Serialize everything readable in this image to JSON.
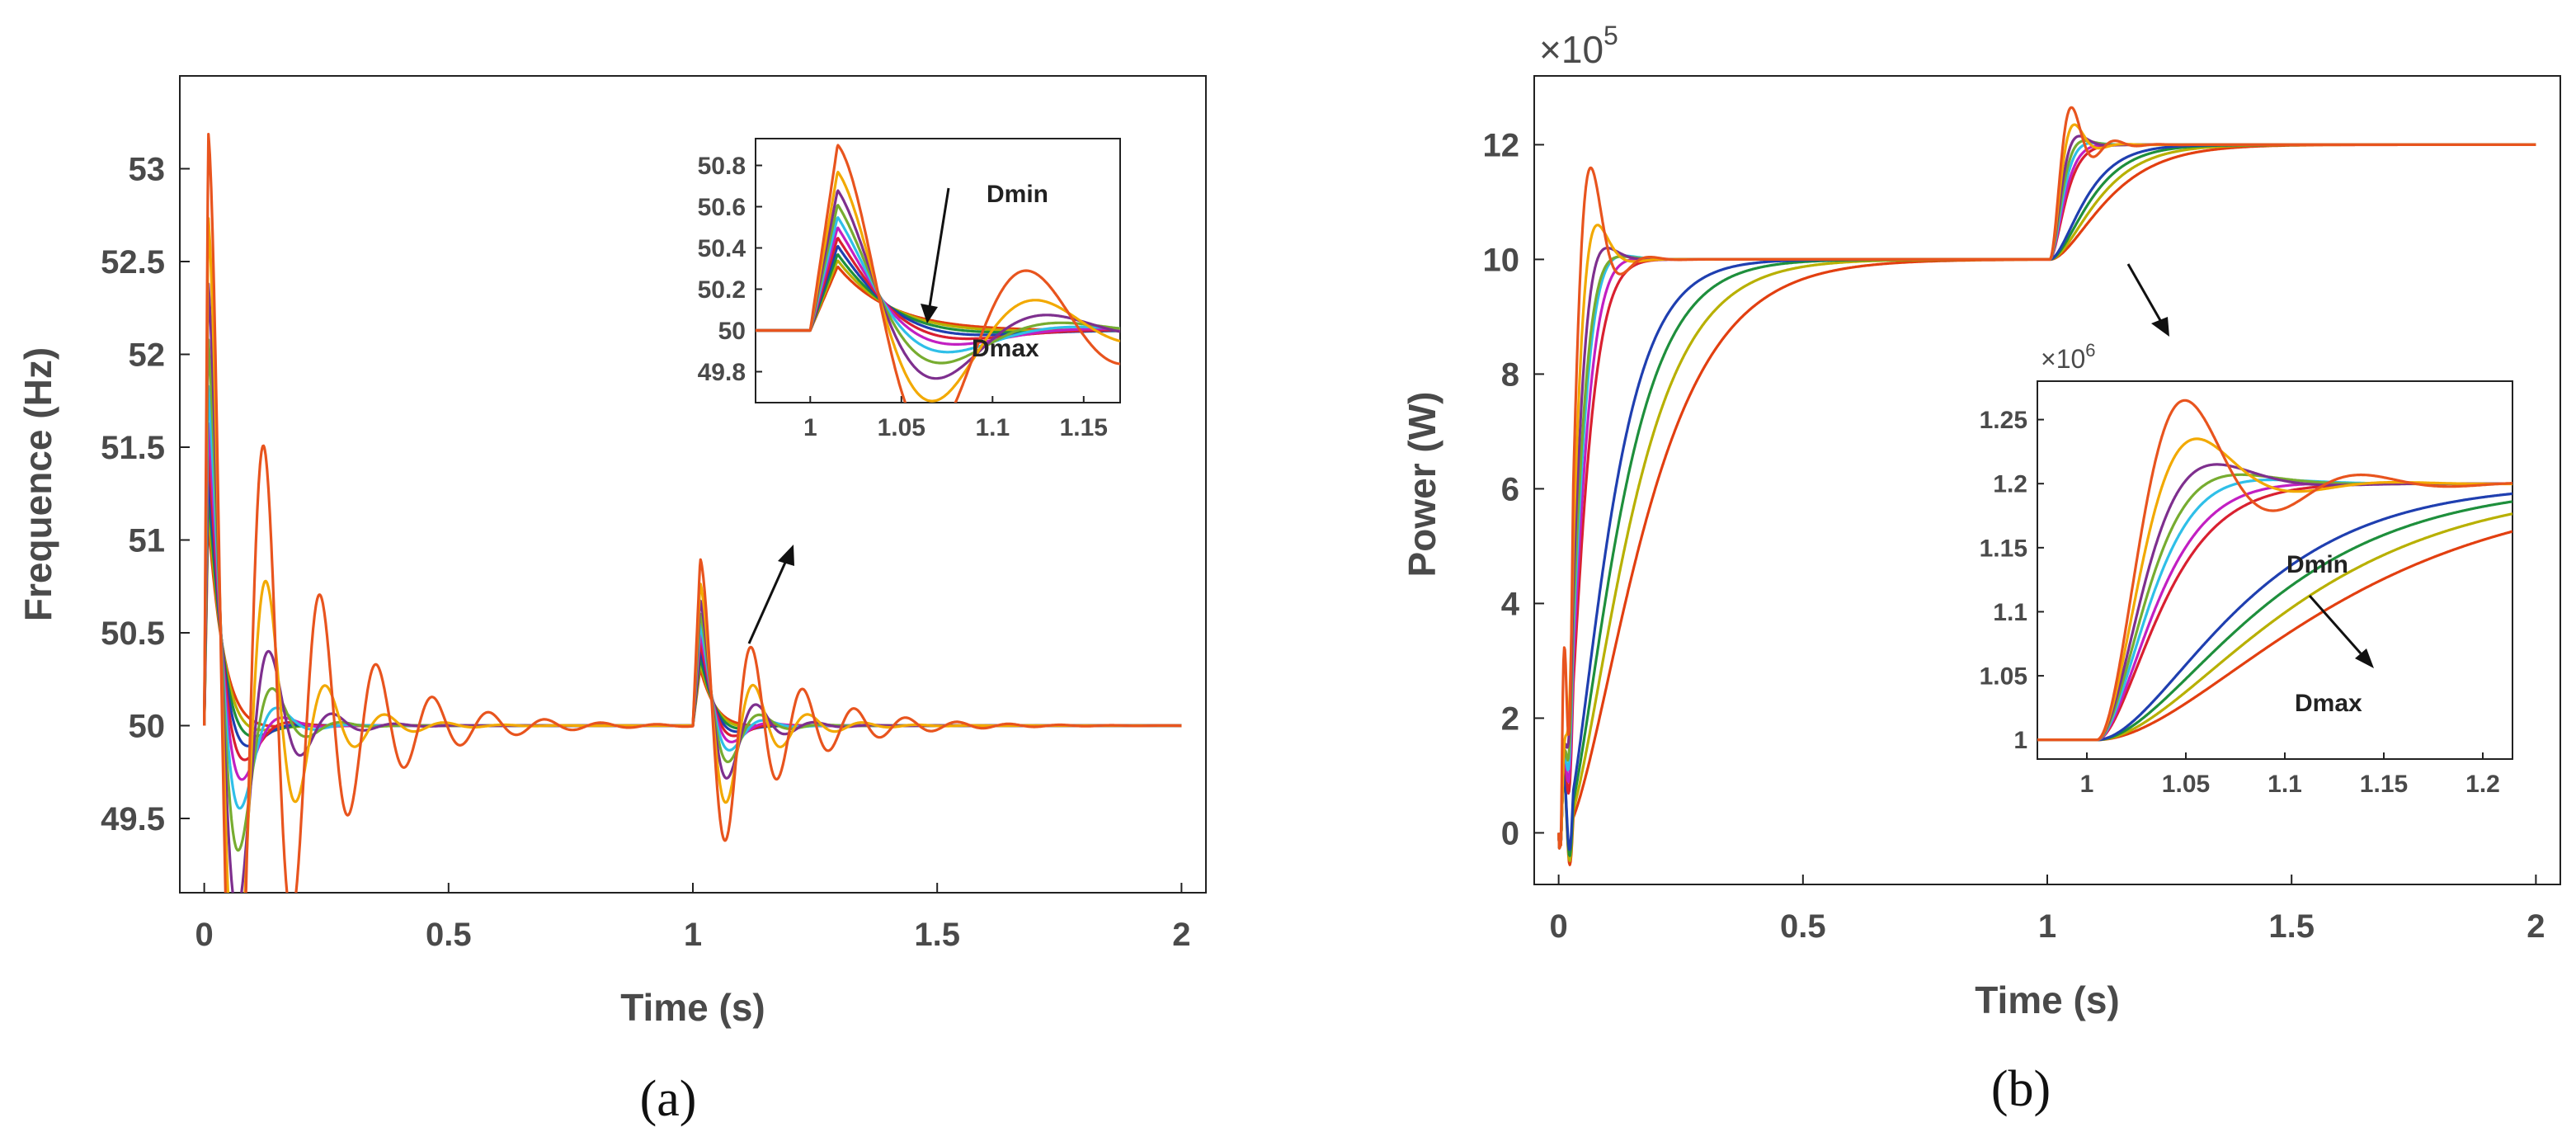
{
  "figure": {
    "panel_a_label": "(a)",
    "panel_b_label": "(b)"
  },
  "chart_data": [
    {
      "id": "a",
      "type": "line",
      "xlabel": "Time (s)",
      "ylabel": "Frequence (Hz)",
      "xlim": [
        -0.05,
        2.05
      ],
      "ylim": [
        49.1,
        53.5
      ],
      "xticks": [
        0,
        0.5,
        1,
        1.5,
        2
      ],
      "xtick_labels": [
        "0",
        "0.5",
        "1",
        "1.5",
        "2"
      ],
      "yticks": [
        49.5,
        50,
        50.5,
        51,
        51.5,
        52,
        52.5,
        53
      ],
      "ytick_labels": [
        "49.5",
        "50",
        "50.5",
        "51",
        "51.5",
        "52",
        "52.5",
        "53"
      ],
      "series_count": 11,
      "step_times": [
        0,
        1
      ],
      "first_peaks": [
        53.2,
        52.75,
        52.4,
        52.1,
        51.85,
        51.65,
        51.5,
        51.38,
        51.28,
        51.2,
        51.12
      ],
      "second_peaks": [
        50.9,
        50.77,
        50.68,
        50.61,
        50.55,
        50.5,
        50.45,
        50.41,
        50.37,
        50.34,
        50.31
      ],
      "inset": {
        "xlim": [
          0.97,
          1.17
        ],
        "ylim": [
          49.65,
          50.93
        ],
        "xticks": [
          1,
          1.05,
          1.1,
          1.15
        ],
        "xtick_labels": [
          "1",
          "1.05",
          "1.1",
          "1.15"
        ],
        "yticks": [
          49.8,
          50,
          50.2,
          50.4,
          50.6,
          50.8
        ],
        "ytick_labels": [
          "49.8",
          "50",
          "50.2",
          "50.4",
          "50.6",
          "50.8"
        ],
        "dmin_label": "Dmin",
        "dmax_label": "Dmax"
      }
    },
    {
      "id": "b",
      "type": "line",
      "xlabel": "Time (s)",
      "ylabel": "Power (W)",
      "exponent_label": "×10",
      "exponent_power": "5",
      "xlim": [
        -0.05,
        2.05
      ],
      "ylim": [
        -0.9,
        13.2
      ],
      "xticks": [
        0,
        0.5,
        1,
        1.5,
        2
      ],
      "xtick_labels": [
        "0",
        "0.5",
        "1",
        "1.5",
        "2"
      ],
      "yticks": [
        0,
        2,
        4,
        6,
        8,
        10,
        12
      ],
      "ytick_labels": [
        "0",
        "2",
        "4",
        "6",
        "8",
        "10",
        "12"
      ],
      "series_count": 11,
      "levels": [
        10,
        12
      ],
      "first_peaks": [
        11.6,
        10.6,
        10.2,
        10.05,
        10.0,
        10.0,
        10.0,
        10.0,
        10.0,
        10.0,
        10.0
      ],
      "second_peaks": [
        12.65,
        12.35,
        12.15,
        12.07,
        12.03,
        12.0,
        12.0,
        12.0,
        12.0,
        12.0,
        12.0
      ],
      "inset": {
        "xlim": [
          0.975,
          1.215
        ],
        "ylim": [
          0.985,
          1.28
        ],
        "xticks": [
          1,
          1.05,
          1.1,
          1.15,
          1.2
        ],
        "xtick_labels": [
          "1",
          "1.05",
          "1.1",
          "1.15",
          "1.2"
        ],
        "yticks": [
          1,
          1.05,
          1.1,
          1.15,
          1.2,
          1.25
        ],
        "ytick_labels": [
          "1",
          "1.05",
          "1.1",
          "1.15",
          "1.2",
          "1.25"
        ],
        "exponent_label": "×10",
        "exponent_power": "6",
        "dmin_label": "Dmin",
        "dmax_label": "Dmax"
      }
    }
  ],
  "palette": [
    "#e8541e",
    "#f2a900",
    "#7e2f8e",
    "#77ac30",
    "#2fbfe8",
    "#c21fc2",
    "#d92030",
    "#1f3fb0",
    "#1e8f3c",
    "#b8b000",
    "#e23f10"
  ]
}
